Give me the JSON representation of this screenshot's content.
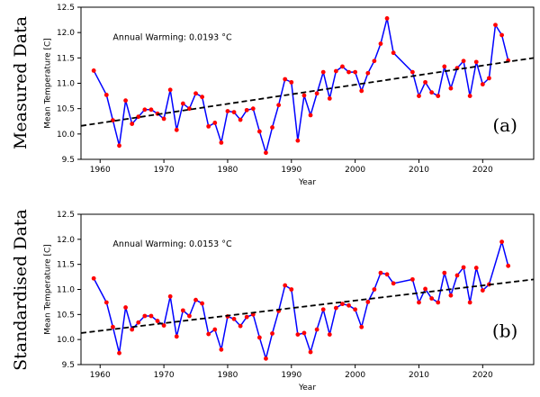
{
  "chart_data": [
    {
      "type": "line",
      "row_label": "Measured Data",
      "panel_tag": "(a)",
      "annotation": "Annual Warming: 0.0193 °C",
      "xlabel": "Year",
      "ylabel": "Mean Temperature [C]",
      "xlim": [
        1957,
        2028
      ],
      "ylim": [
        9.5,
        12.5
      ],
      "x_ticks": [
        1960,
        1970,
        1980,
        1990,
        2000,
        2010,
        2020
      ],
      "y_ticks": [
        9.5,
        10.0,
        10.5,
        11.0,
        11.5,
        12.0,
        12.5
      ],
      "grid": false,
      "series": [
        {
          "color": "#0000ff",
          "marker_color": "#ff0000",
          "points": [
            [
              1959,
              11.25
            ],
            [
              1961,
              10.77
            ],
            [
              1962,
              10.27
            ],
            [
              1963,
              9.77
            ],
            [
              1964,
              10.66
            ],
            [
              1965,
              10.2
            ],
            [
              1966,
              10.34
            ],
            [
              1967,
              10.48
            ],
            [
              1968,
              10.48
            ],
            [
              1969,
              10.4
            ],
            [
              1970,
              10.3
            ],
            [
              1971,
              10.87
            ],
            [
              1972,
              10.08
            ],
            [
              1973,
              10.6
            ],
            [
              1974,
              10.5
            ],
            [
              1975,
              10.8
            ],
            [
              1976,
              10.73
            ],
            [
              1977,
              10.15
            ],
            [
              1978,
              10.22
            ],
            [
              1979,
              9.83
            ],
            [
              1980,
              10.45
            ],
            [
              1981,
              10.43
            ],
            [
              1982,
              10.28
            ],
            [
              1983,
              10.47
            ],
            [
              1984,
              10.5
            ],
            [
              1985,
              10.05
            ],
            [
              1986,
              9.63
            ],
            [
              1987,
              10.13
            ],
            [
              1988,
              10.57
            ],
            [
              1989,
              11.08
            ],
            [
              1990,
              11.02
            ],
            [
              1991,
              9.87
            ],
            [
              1992,
              10.76
            ],
            [
              1993,
              10.37
            ],
            [
              1994,
              10.8
            ],
            [
              1995,
              11.22
            ],
            [
              1996,
              10.7
            ],
            [
              1997,
              11.24
            ],
            [
              1998,
              11.33
            ],
            [
              1999,
              11.22
            ],
            [
              2000,
              11.22
            ],
            [
              2001,
              10.85
            ],
            [
              2002,
              11.2
            ],
            [
              2003,
              11.44
            ],
            [
              2004,
              11.78
            ],
            [
              2005,
              12.28
            ],
            [
              2006,
              11.6
            ],
            [
              2009,
              11.22
            ],
            [
              2010,
              10.75
            ],
            [
              2011,
              11.02
            ],
            [
              2012,
              10.82
            ],
            [
              2013,
              10.75
            ],
            [
              2014,
              11.33
            ],
            [
              2015,
              10.9
            ],
            [
              2016,
              11.3
            ],
            [
              2017,
              11.44
            ],
            [
              2018,
              10.75
            ],
            [
              2019,
              11.42
            ],
            [
              2020,
              10.98
            ],
            [
              2021,
              11.1
            ],
            [
              2022,
              12.15
            ],
            [
              2023,
              11.95
            ],
            [
              2024,
              11.45
            ]
          ]
        }
      ],
      "trend": {
        "style": "dashed",
        "color": "#000000",
        "x": [
          1957,
          2028
        ],
        "y": [
          10.16,
          11.5
        ]
      }
    },
    {
      "type": "line",
      "row_label": "Standardised Data",
      "panel_tag": "(b)",
      "annotation": "Annual Warming: 0.0153 °C",
      "xlabel": "Year",
      "ylabel": "Mean Temperature [C]",
      "xlim": [
        1957,
        2028
      ],
      "ylim": [
        9.5,
        12.5
      ],
      "x_ticks": [
        1960,
        1970,
        1980,
        1990,
        2000,
        2010,
        2020
      ],
      "y_ticks": [
        9.5,
        10.0,
        10.5,
        11.0,
        11.5,
        12.0,
        12.5
      ],
      "grid": false,
      "series": [
        {
          "color": "#0000ff",
          "marker_color": "#ff0000",
          "points": [
            [
              1959,
              11.22
            ],
            [
              1961,
              10.74
            ],
            [
              1962,
              10.25
            ],
            [
              1963,
              9.73
            ],
            [
              1964,
              10.64
            ],
            [
              1965,
              10.2
            ],
            [
              1966,
              10.34
            ],
            [
              1967,
              10.47
            ],
            [
              1968,
              10.47
            ],
            [
              1969,
              10.37
            ],
            [
              1970,
              10.28
            ],
            [
              1971,
              10.86
            ],
            [
              1972,
              10.06
            ],
            [
              1973,
              10.58
            ],
            [
              1974,
              10.47
            ],
            [
              1975,
              10.79
            ],
            [
              1976,
              10.72
            ],
            [
              1977,
              10.11
            ],
            [
              1978,
              10.2
            ],
            [
              1979,
              9.8
            ],
            [
              1980,
              10.46
            ],
            [
              1981,
              10.41
            ],
            [
              1982,
              10.27
            ],
            [
              1983,
              10.45
            ],
            [
              1984,
              10.5
            ],
            [
              1985,
              10.04
            ],
            [
              1986,
              9.62
            ],
            [
              1987,
              10.12
            ],
            [
              1988,
              10.57
            ],
            [
              1989,
              11.08
            ],
            [
              1990,
              11.0
            ],
            [
              1991,
              10.1
            ],
            [
              1992,
              10.13
            ],
            [
              1993,
              9.75
            ],
            [
              1994,
              10.2
            ],
            [
              1995,
              10.6
            ],
            [
              1996,
              10.1
            ],
            [
              1997,
              10.63
            ],
            [
              1998,
              10.71
            ],
            [
              1999,
              10.68
            ],
            [
              2000,
              10.6
            ],
            [
              2001,
              10.25
            ],
            [
              2002,
              10.75
            ],
            [
              2003,
              11.0
            ],
            [
              2004,
              11.33
            ],
            [
              2005,
              11.3
            ],
            [
              2006,
              11.12
            ],
            [
              2009,
              11.2
            ],
            [
              2010,
              10.74
            ],
            [
              2011,
              11.01
            ],
            [
              2012,
              10.82
            ],
            [
              2013,
              10.74
            ],
            [
              2014,
              11.33
            ],
            [
              2015,
              10.88
            ],
            [
              2016,
              11.28
            ],
            [
              2017,
              11.44
            ],
            [
              2018,
              10.74
            ],
            [
              2019,
              11.43
            ],
            [
              2020,
              10.98
            ],
            [
              2021,
              11.1
            ],
            [
              2023,
              11.95
            ],
            [
              2024,
              11.47
            ]
          ]
        }
      ],
      "trend": {
        "style": "dashed",
        "color": "#000000",
        "x": [
          1957,
          2028
        ],
        "y": [
          10.13,
          11.2
        ]
      }
    }
  ]
}
